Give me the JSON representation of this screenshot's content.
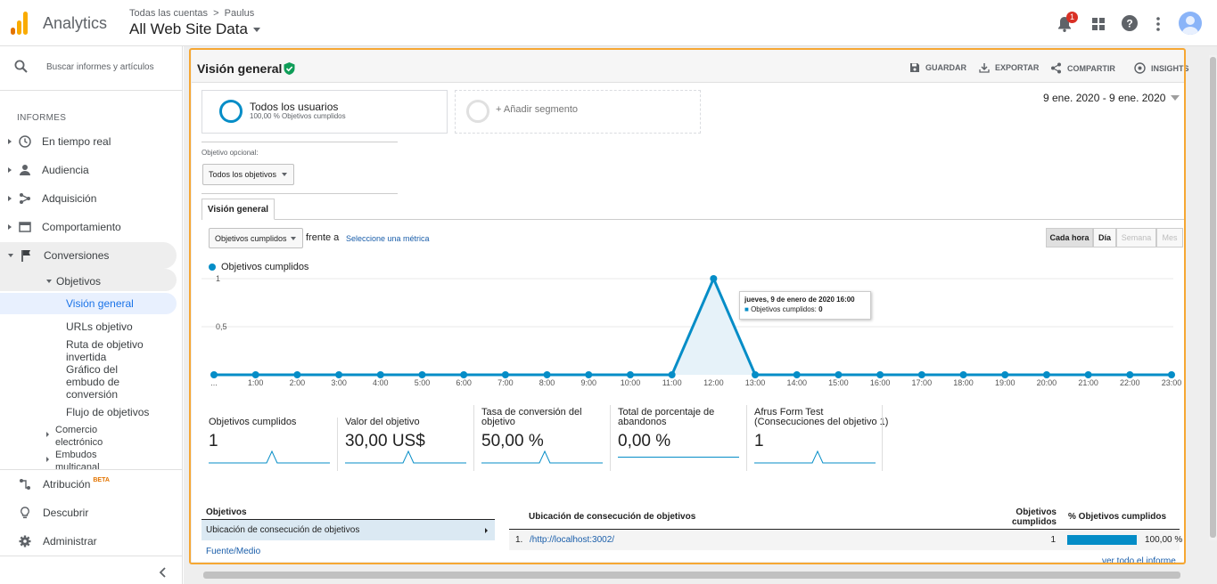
{
  "header": {
    "app_name": "Analytics",
    "breadcrumb_accounts": "Todas las cuentas",
    "breadcrumb_sep": ">",
    "breadcrumb_property": "Paulus",
    "view_name": "All Web Site Data",
    "notif_count": "1"
  },
  "sidebar": {
    "search_placeholder": "Buscar informes y artículos",
    "section_label": "INFORMES",
    "items": [
      {
        "label": "En tiempo real",
        "icon": "clock-icon"
      },
      {
        "label": "Audiencia",
        "icon": "person-icon"
      },
      {
        "label": "Adquisición",
        "icon": "acquisition-icon"
      },
      {
        "label": "Comportamiento",
        "icon": "behavior-icon"
      },
      {
        "label": "Conversiones",
        "icon": "flag-icon"
      }
    ],
    "objetivos": "Objetivos",
    "sub": [
      "Visión general",
      "URLs objetivo",
      "Ruta de objetivo invertida",
      "Gráfico del embudo de conversión",
      "Flujo de objetivos"
    ],
    "sub_rev_1": "Ruta de objetivo",
    "sub_rev_2": "invertida",
    "sub_fun_1": "Gráfico del",
    "sub_fun_2": "embudo de",
    "sub_fun_3": "conversión",
    "comercio_1": "Comercio",
    "comercio_2": "electrónico",
    "embudos_1": "Embudos",
    "embudos_2": "multicanal",
    "atribucion": "Atribución",
    "beta": "BETA",
    "descubrir": "Descubrir",
    "administrar": "Administrar"
  },
  "toolbar": {
    "title": "Visión general",
    "save": "GUARDAR",
    "export": "EXPORTAR",
    "share": "COMPARTIR",
    "insights": "INSIGHTS"
  },
  "segments": {
    "all_users": "Todos los usuarios",
    "all_users_sub": "100,00 % Objetivos cumplidos",
    "add": "+ Añadir segmento"
  },
  "date_range": "9 ene. 2020 - 9 ene. 2020",
  "goal_filter": {
    "label": "Objetivo opcional:",
    "value": "Todos los objetivos"
  },
  "tab": "Visión general",
  "metric": {
    "value": "Objetivos cumplidos",
    "versus": "frente a",
    "select": "Seleccione una métrica"
  },
  "granularity": [
    "Cada hora",
    "Día",
    "Semana",
    "Mes"
  ],
  "chart_data": {
    "type": "area",
    "legend": "Objetivos cumplidos",
    "x": [
      "...",
      "1:00",
      "2:00",
      "3:00",
      "4:00",
      "5:00",
      "6:00",
      "7:00",
      "8:00",
      "9:00",
      "10:00",
      "11:00",
      "12:00",
      "13:00",
      "14:00",
      "15:00",
      "16:00",
      "17:00",
      "18:00",
      "19:00",
      "20:00",
      "21:00",
      "22:00",
      "23:00"
    ],
    "values": [
      0,
      0,
      0,
      0,
      0,
      0,
      0,
      0,
      0,
      0,
      0,
      0,
      1,
      0,
      0,
      0,
      0,
      0,
      0,
      0,
      0,
      0,
      0,
      0
    ],
    "yticks": [
      "1",
      "0,5"
    ],
    "ylim": [
      0,
      1
    ],
    "color": "#058dc7",
    "tooltip_title": "jueves, 9 de enero de 2020 16:00",
    "tooltip_label": "Objetivos cumplidos:",
    "tooltip_value": "0"
  },
  "metrics": [
    {
      "l1": "Objetivos cumplidos",
      "l2": "",
      "value": "1"
    },
    {
      "l1": "Valor del objetivo",
      "l2": "",
      "value": "30,00 US$"
    },
    {
      "l1": "Tasa de conversión del",
      "l2": "objetivo",
      "value": "50,00 %"
    },
    {
      "l1": "Total de porcentaje de",
      "l2": "abandonos",
      "value": "0,00 %"
    },
    {
      "l1": "Afrus Form Test",
      "l2": "(Consecuciones del objetivo 1)",
      "value": "1"
    }
  ],
  "table": {
    "left_header": "Objetivos",
    "left_selected": "Ubicación de consecución de objetivos",
    "left_link": "Fuente/Medio",
    "col1": "Ubicación de consecución de objetivos",
    "col2a": "Objetivos",
    "col2b": "cumplidos",
    "col3": "% Objetivos cumplidos",
    "row_num": "1.",
    "row_url": "/http://localhost:3002/",
    "row_val": "1",
    "row_pct": "100,00 %",
    "full_report": "ver todo el informe"
  }
}
